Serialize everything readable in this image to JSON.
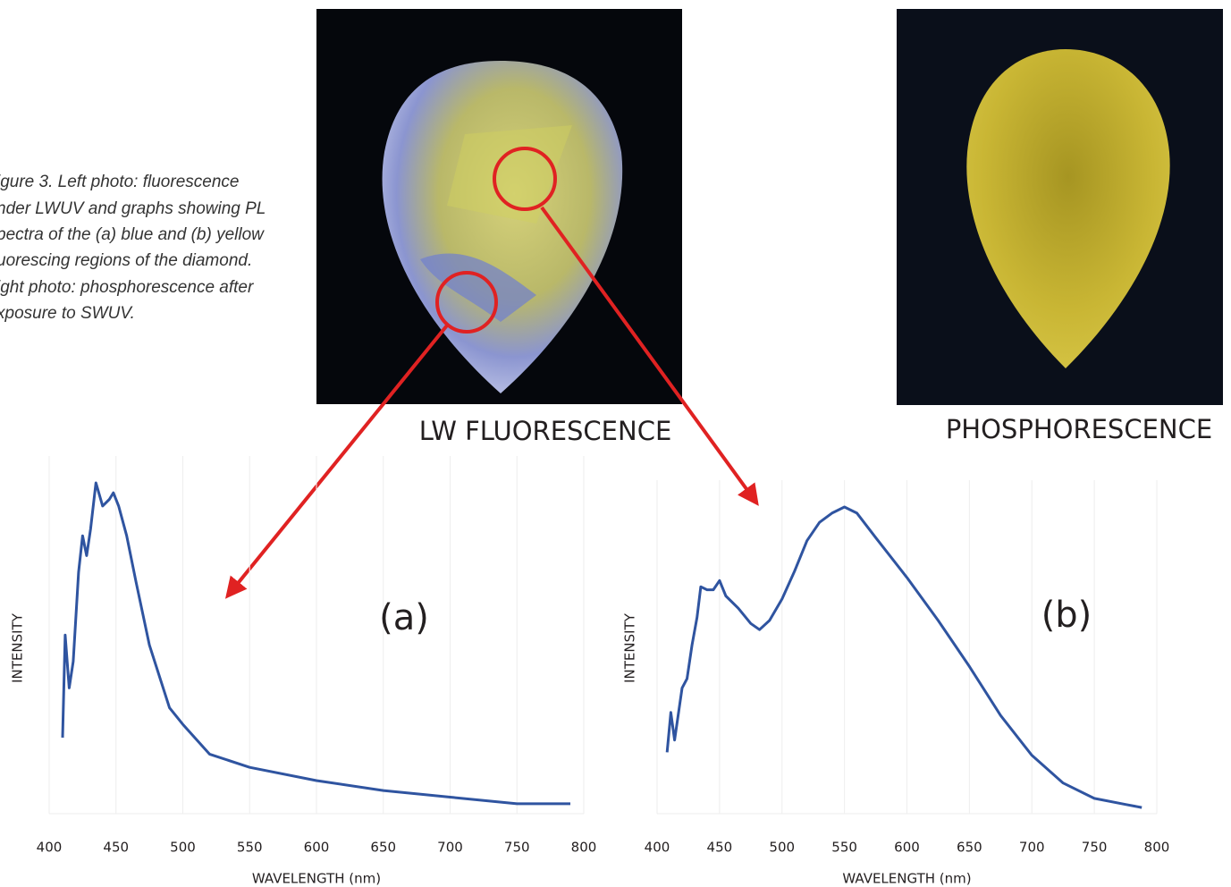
{
  "caption": {
    "lines": [
      "igure 3. Left photo: fluorescence",
      "nder LWUV and graphs showing PL",
      "pectra of the (a) blue and (b) yellow",
      "uorescing regions of the diamond.",
      "ight photo: phosphorescence after",
      "xposure to SWUV."
    ]
  },
  "photos": [
    {
      "label": "LW FLUORESCENCE"
    },
    {
      "label": "PHOSPHORESCENCE"
    }
  ],
  "chart_data": [
    {
      "type": "line",
      "annotation": "(a)",
      "xlabel": "WAVELENGTH (nm)",
      "ylabel": "INTENSITY",
      "color": "#2f54a0",
      "grid": true,
      "x": [
        410,
        412,
        415,
        418,
        422,
        425,
        428,
        431,
        435,
        440,
        445,
        448,
        452,
        458,
        465,
        475,
        490,
        500,
        520,
        550,
        600,
        650,
        700,
        750,
        790
      ],
      "values": [
        23,
        54,
        38,
        46,
        73,
        84,
        78,
        86,
        100,
        93,
        95,
        97,
        93,
        84,
        70,
        51,
        32,
        27,
        18,
        14,
        10,
        7,
        5,
        3,
        3
      ],
      "xlim": [
        400,
        800
      ],
      "xticks": [
        400,
        450,
        500,
        550,
        600,
        650,
        700,
        750,
        800
      ],
      "ylim": [
        0,
        100
      ]
    },
    {
      "type": "line",
      "annotation": "(b)",
      "xlabel": "WAVELENGTH (nm)",
      "ylabel": "INTENSITY",
      "color": "#2f54a0",
      "grid": true,
      "x": [
        408,
        411,
        414,
        420,
        424,
        428,
        432,
        435,
        440,
        445,
        450,
        455,
        465,
        475,
        482,
        490,
        500,
        510,
        520,
        530,
        540,
        550,
        560,
        575,
        600,
        625,
        650,
        675,
        700,
        725,
        750,
        775,
        788
      ],
      "values": [
        20,
        33,
        24,
        41,
        44,
        55,
        64,
        74,
        73,
        73,
        76,
        71,
        67,
        62,
        60,
        63,
        70,
        79,
        89,
        95,
        98,
        100,
        98,
        90,
        77,
        63,
        48,
        32,
        19,
        10,
        5,
        3,
        2
      ],
      "xlim": [
        400,
        800
      ],
      "xticks": [
        400,
        450,
        500,
        550,
        600,
        650,
        700,
        750,
        800
      ],
      "ylim": [
        0,
        100
      ]
    }
  ]
}
